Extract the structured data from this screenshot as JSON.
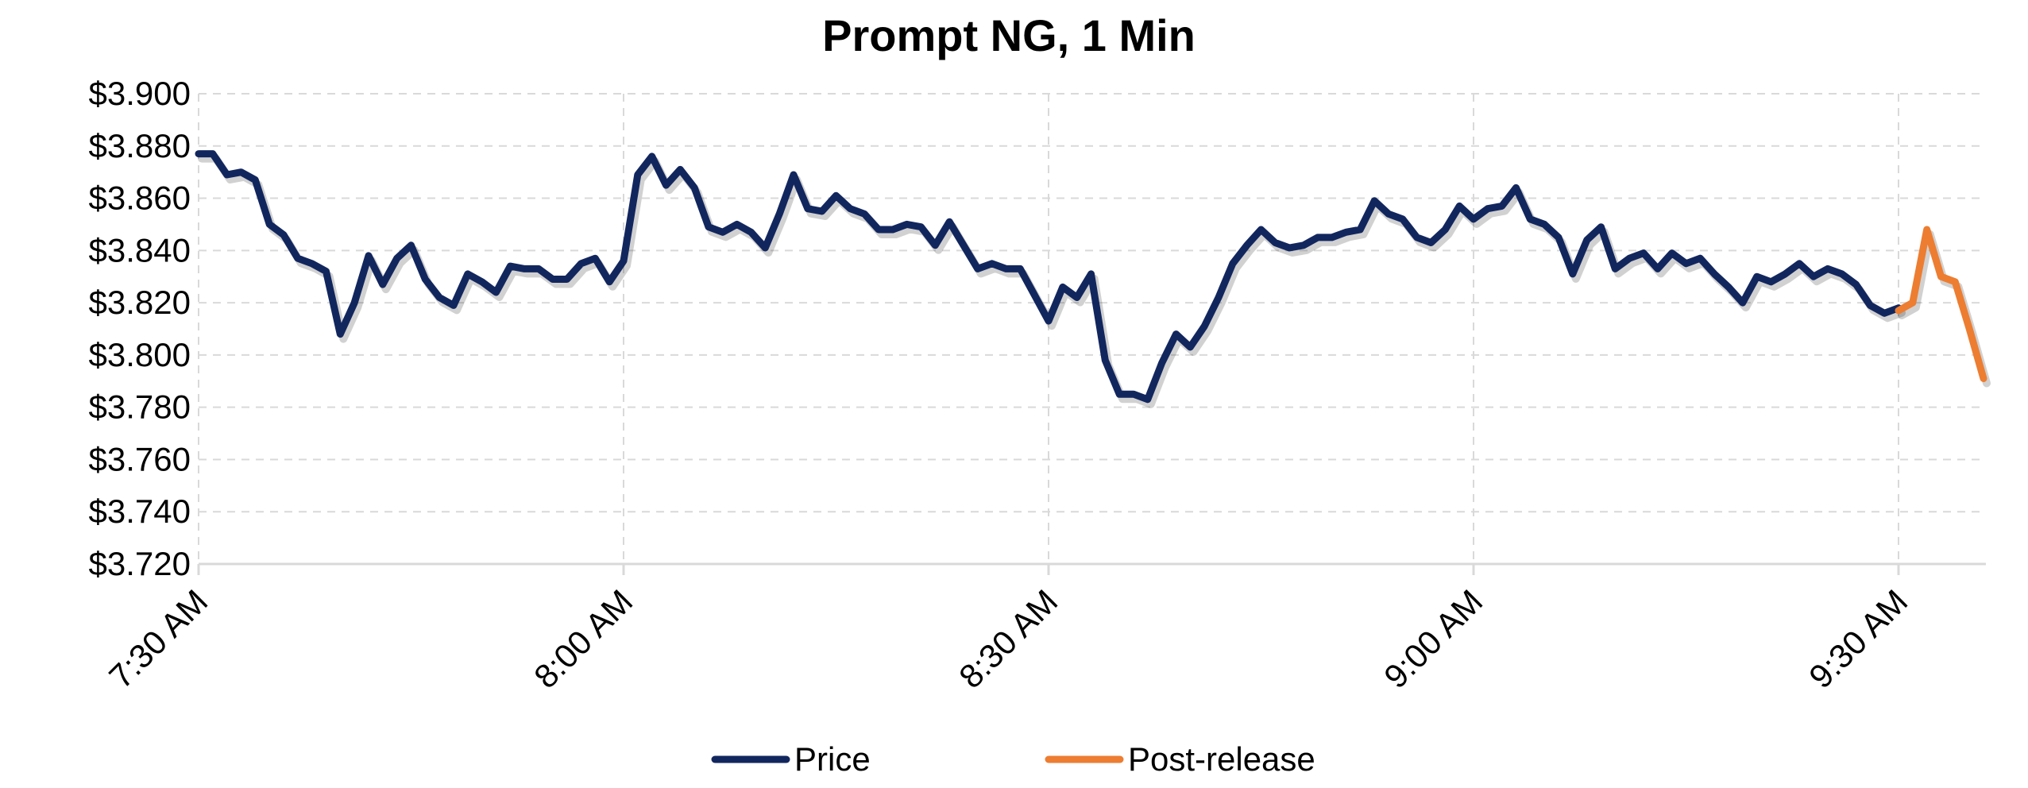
{
  "chart_data": {
    "type": "line",
    "title": "Prompt NG, 1 Min",
    "xlabel": "",
    "ylabel": "",
    "ylim": [
      3.72,
      3.9
    ],
    "y_ticks": [
      "$3.900",
      "$3.880",
      "$3.860",
      "$3.840",
      "$3.820",
      "$3.800",
      "$3.780",
      "$3.760",
      "$3.740",
      "$3.720"
    ],
    "y_tick_values": [
      3.9,
      3.88,
      3.86,
      3.84,
      3.82,
      3.8,
      3.78,
      3.76,
      3.74,
      3.72
    ],
    "x_ticks": [
      "7:30 AM",
      "8:00 AM",
      "8:30 AM",
      "9:00 AM",
      "9:30 AM"
    ],
    "x_tick_minutes": [
      0,
      30,
      60,
      90,
      120
    ],
    "xlim_minutes": [
      0,
      126
    ],
    "grid": true,
    "legend_position": "bottom",
    "series": [
      {
        "name": "Price",
        "color": "#12265e",
        "x": [
          0,
          1,
          2,
          3,
          4,
          5,
          6,
          7,
          8,
          9,
          10,
          11,
          12,
          13,
          14,
          15,
          16,
          17,
          18,
          19,
          20,
          21,
          22,
          23,
          24,
          25,
          26,
          27,
          28,
          29,
          30,
          31,
          32,
          33,
          34,
          35,
          36,
          37,
          38,
          39,
          40,
          41,
          42,
          43,
          44,
          45,
          46,
          47,
          48,
          49,
          50,
          51,
          52,
          53,
          54,
          55,
          56,
          57,
          58,
          59,
          60,
          61,
          62,
          63,
          64,
          65,
          66,
          67,
          68,
          69,
          70,
          71,
          72,
          73,
          74,
          75,
          76,
          77,
          78,
          79,
          80,
          81,
          82,
          83,
          84,
          85,
          86,
          87,
          88,
          89,
          90,
          91,
          92,
          93,
          94,
          95,
          96,
          97,
          98,
          99,
          100,
          101,
          102,
          103,
          104,
          105,
          106,
          107,
          108,
          109,
          110,
          111,
          112,
          113,
          114,
          115,
          116,
          117,
          118,
          119,
          120
        ],
        "values": [
          3.877,
          3.877,
          3.869,
          3.87,
          3.867,
          3.85,
          3.846,
          3.837,
          3.835,
          3.832,
          3.808,
          3.82,
          3.838,
          3.827,
          3.837,
          3.842,
          3.829,
          3.822,
          3.819,
          3.831,
          3.828,
          3.824,
          3.834,
          3.833,
          3.833,
          3.829,
          3.829,
          3.835,
          3.837,
          3.828,
          3.836,
          3.869,
          3.876,
          3.865,
          3.871,
          3.864,
          3.849,
          3.847,
          3.85,
          3.847,
          3.841,
          3.854,
          3.869,
          3.856,
          3.855,
          3.861,
          3.856,
          3.854,
          3.848,
          3.848,
          3.85,
          3.849,
          3.842,
          3.851,
          3.842,
          3.833,
          3.835,
          3.833,
          3.833,
          3.823,
          3.813,
          3.826,
          3.822,
          3.831,
          3.798,
          3.785,
          3.785,
          3.783,
          3.797,
          3.808,
          3.803,
          3.811,
          3.822,
          3.835,
          3.842,
          3.848,
          3.843,
          3.841,
          3.842,
          3.845,
          3.845,
          3.847,
          3.848,
          3.859,
          3.854,
          3.852,
          3.845,
          3.843,
          3.848,
          3.857,
          3.852,
          3.856,
          3.857,
          3.864,
          3.852,
          3.85,
          3.845,
          3.831,
          3.844,
          3.849,
          3.833,
          3.837,
          3.839,
          3.833,
          3.839,
          3.835,
          3.837,
          3.831,
          3.826,
          3.82,
          3.83,
          3.828,
          3.831,
          3.835,
          3.83,
          3.833,
          3.831,
          3.827,
          3.819,
          3.816,
          3.818
        ]
      },
      {
        "name": "Post-release",
        "color": "#ed7d31",
        "x": [
          120,
          121,
          122,
          123,
          124,
          125,
          126
        ],
        "values": [
          3.817,
          3.82,
          3.848,
          3.83,
          3.828,
          3.81,
          3.791
        ]
      }
    ]
  }
}
